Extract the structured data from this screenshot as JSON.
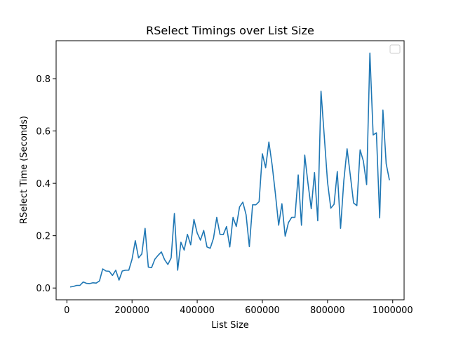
{
  "chart_data": {
    "type": "line",
    "title": "RSelect Timings over List Size",
    "xlabel": "List Size",
    "ylabel": "RSelect Time (Seconds)",
    "xlim": [
      -33000,
      1035000
    ],
    "ylim": [
      -0.045,
      0.945
    ],
    "xticks": [
      0,
      200000,
      400000,
      600000,
      800000,
      1000000
    ],
    "xtick_labels": [
      "0",
      "200000",
      "400000",
      "600000",
      "800000",
      "1000000"
    ],
    "yticks": [
      0.0,
      0.2,
      0.4,
      0.6,
      0.8
    ],
    "ytick_labels": [
      "0.0",
      "0.2",
      "0.4",
      "0.6",
      "0.8"
    ],
    "grid": false,
    "legend": {
      "placement": "top-right",
      "entries": []
    },
    "series": [
      {
        "color": "#1f77b4",
        "x": [
          10000,
          20000,
          30000,
          40000,
          50000,
          60000,
          70000,
          80000,
          90000,
          100000,
          110000,
          120000,
          130000,
          140000,
          150000,
          160000,
          170000,
          180000,
          190000,
          200000,
          210000,
          220000,
          230000,
          240000,
          250000,
          260000,
          270000,
          280000,
          290000,
          300000,
          310000,
          320000,
          330000,
          340000,
          350000,
          360000,
          370000,
          380000,
          390000,
          400000,
          410000,
          420000,
          430000,
          440000,
          450000,
          460000,
          470000,
          480000,
          490000,
          500000,
          510000,
          520000,
          530000,
          540000,
          550000,
          560000,
          570000,
          580000,
          590000,
          600000,
          610000,
          620000,
          630000,
          640000,
          650000,
          660000,
          670000,
          680000,
          690000,
          700000,
          710000,
          720000,
          730000,
          740000,
          750000,
          760000,
          770000,
          780000,
          790000,
          800000,
          810000,
          820000,
          830000,
          840000,
          850000,
          860000,
          870000,
          880000,
          890000,
          900000,
          910000,
          920000,
          930000,
          940000,
          950000,
          960000,
          970000,
          980000,
          990000
        ],
        "y": [
          0.004,
          0.006,
          0.01,
          0.01,
          0.023,
          0.018,
          0.017,
          0.02,
          0.019,
          0.027,
          0.073,
          0.065,
          0.064,
          0.048,
          0.068,
          0.03,
          0.065,
          0.068,
          0.068,
          0.11,
          0.181,
          0.115,
          0.13,
          0.228,
          0.08,
          0.078,
          0.11,
          0.125,
          0.138,
          0.108,
          0.09,
          0.115,
          0.285,
          0.068,
          0.175,
          0.145,
          0.205,
          0.165,
          0.262,
          0.21,
          0.183,
          0.22,
          0.157,
          0.152,
          0.19,
          0.27,
          0.205,
          0.204,
          0.235,
          0.157,
          0.27,
          0.235,
          0.31,
          0.328,
          0.28,
          0.158,
          0.318,
          0.318,
          0.33,
          0.513,
          0.46,
          0.558,
          0.47,
          0.36,
          0.24,
          0.322,
          0.198,
          0.25,
          0.27,
          0.27,
          0.432,
          0.24,
          0.508,
          0.4,
          0.303,
          0.441,
          0.257,
          0.752,
          0.58,
          0.405,
          0.305,
          0.32,
          0.445,
          0.228,
          0.41,
          0.532,
          0.43,
          0.325,
          0.315,
          0.528,
          0.485,
          0.395,
          0.898,
          0.585,
          0.593,
          0.268,
          0.68,
          0.475,
          0.412
        ]
      }
    ]
  }
}
